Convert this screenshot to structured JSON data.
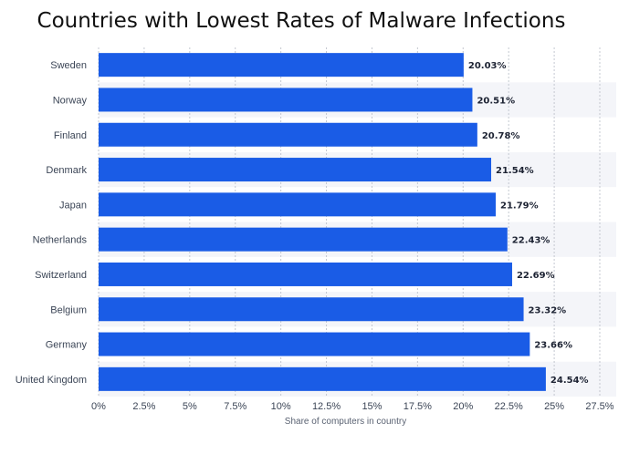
{
  "chart_data": {
    "type": "bar",
    "orientation": "horizontal",
    "title": "Countries with Lowest Rates of Malware Infections",
    "xlabel": "Share of computers in country",
    "ylabel": "",
    "categories": [
      "Sweden",
      "Norway",
      "Finland",
      "Denmark",
      "Japan",
      "Netherlands",
      "Switzerland",
      "Belgium",
      "Germany",
      "United Kingdom"
    ],
    "values": [
      20.03,
      20.51,
      20.78,
      21.54,
      21.79,
      22.43,
      22.69,
      23.32,
      23.66,
      24.54
    ],
    "value_labels": [
      "20.03%",
      "20.51%",
      "20.78%",
      "21.54%",
      "21.79%",
      "22.43%",
      "22.69%",
      "23.32%",
      "23.66%",
      "24.54%"
    ],
    "xlim": [
      0,
      27.5
    ],
    "x_ticks": [
      0,
      2.5,
      5,
      7.5,
      10,
      12.5,
      15,
      17.5,
      20,
      22.5,
      25,
      27.5
    ],
    "x_tick_labels": [
      "0%",
      "2.5%",
      "5%",
      "7.5%",
      "10%",
      "12.5%",
      "15%",
      "17.5%",
      "20%",
      "22.5%",
      "25%",
      "27.5%"
    ],
    "grid": true,
    "colors": {
      "bar": "#1a5ce6",
      "stripe": "#f4f5f9",
      "grid": "#c4c8d0"
    }
  }
}
